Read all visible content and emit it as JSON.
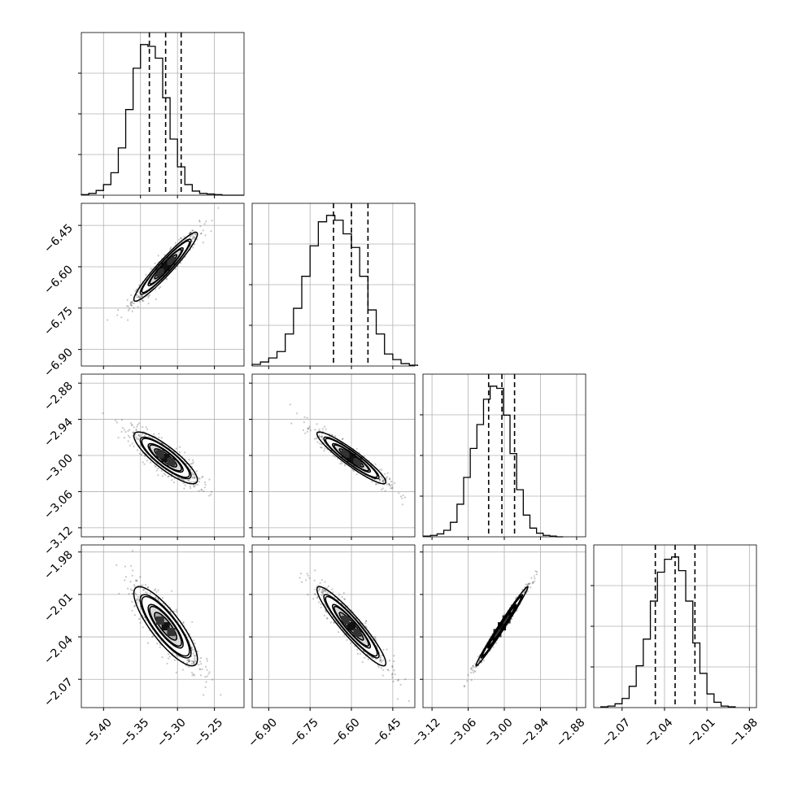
{
  "chart_data": {
    "type": "corner",
    "parameters": [
      {
        "range": [
          -5.43,
          -5.21
        ],
        "ticks": [
          -5.4,
          -5.35,
          -5.3,
          -5.25
        ],
        "tick_labels": [
          "−5.40",
          "−5.35",
          "−5.30",
          "−5.25"
        ],
        "quantiles": [
          -5.338,
          -5.316,
          -5.295
        ],
        "hist_bins": [
          -5.43,
          -5.42,
          -5.41,
          -5.4,
          -5.39,
          -5.38,
          -5.37,
          -5.36,
          -5.35,
          -5.34,
          -5.33,
          -5.32,
          -5.31,
          -5.3,
          -5.29,
          -5.28,
          -5.27,
          -5.26,
          -5.25,
          -5.24,
          -5.23,
          -5.22,
          -5.21
        ],
        "hist_counts": [
          1,
          3,
          8,
          18,
          38,
          80,
          145,
          215,
          255,
          252,
          232,
          165,
          95,
          48,
          18,
          7,
          3,
          2,
          1,
          0,
          0,
          0
        ]
      },
      {
        "range": [
          -6.96,
          -6.37
        ],
        "ticks": [
          -6.9,
          -6.75,
          -6.6,
          -6.45
        ],
        "tick_labels": [
          "−6.90",
          "−6.75",
          "−6.60",
          "−6.45"
        ],
        "quantiles": [
          -6.665,
          -6.6,
          -6.54
        ],
        "hist_bins": [
          -6.96,
          -6.93,
          -6.9,
          -6.87,
          -6.84,
          -6.81,
          -6.78,
          -6.75,
          -6.72,
          -6.69,
          -6.66,
          -6.63,
          -6.6,
          -6.57,
          -6.54,
          -6.51,
          -6.48,
          -6.45,
          -6.42,
          -6.39,
          -6.36
        ],
        "hist_counts": [
          2,
          5,
          10,
          18,
          40,
          72,
          112,
          150,
          180,
          188,
          182,
          165,
          148,
          112,
          70,
          40,
          15,
          8,
          3,
          1
        ]
      },
      {
        "range": [
          -3.135,
          -2.865
        ],
        "ticks": [
          -3.12,
          -3.06,
          -3.0,
          -2.94,
          -2.88
        ],
        "tick_labels": [
          "−3.12",
          "−3.06",
          "−3.00",
          "−2.94",
          "−2.88"
        ],
        "quantiles": [
          -3.026,
          -3.004,
          -2.983
        ],
        "hist_bins": [
          -3.1335,
          -3.1225,
          -3.1115,
          -3.1005,
          -3.0895,
          -3.0785,
          -3.0675,
          -3.0565,
          -3.0455,
          -3.0345,
          -3.0235,
          -3.0125,
          -3.0015,
          -2.9905,
          -2.9795,
          -2.9685,
          -2.9575,
          -2.9465,
          -2.9355,
          -2.9245,
          -2.9135,
          -2.9025
        ],
        "hist_counts": [
          1,
          2,
          4,
          9,
          20,
          45,
          82,
          122,
          155,
          190,
          208,
          205,
          168,
          115,
          65,
          30,
          12,
          5,
          2,
          1,
          0
        ]
      },
      {
        "range": [
          -2.09,
          -1.975
        ],
        "ticks": [
          -2.07,
          -2.04,
          -2.01,
          -1.98
        ],
        "tick_labels": [
          "−2.07",
          "−2.04",
          "−2.01",
          "−1.98"
        ],
        "quantiles": [
          -2.0465,
          -2.0325,
          -2.0185
        ],
        "hist_bins": [
          -2.085,
          -2.08,
          -2.075,
          -2.07,
          -2.065,
          -2.06,
          -2.055,
          -2.05,
          -2.045,
          -2.04,
          -2.035,
          -2.03,
          -2.025,
          -2.02,
          -2.015,
          -2.01,
          -2.005,
          -2.0,
          -1.995,
          -1.99
        ],
        "hist_counts": [
          1,
          2,
          5,
          12,
          28,
          55,
          90,
          140,
          178,
          195,
          198,
          180,
          140,
          85,
          45,
          18,
          7,
          2,
          1
        ]
      }
    ],
    "pairs": [
      {
        "row": 1,
        "col": 0,
        "slope": 2.3,
        "corr": 0.95
      },
      {
        "row": 2,
        "col": 0,
        "slope": -0.55,
        "corr": -0.85
      },
      {
        "row": 2,
        "col": 1,
        "slope": -0.3,
        "corr": -0.93
      },
      {
        "row": 3,
        "col": 0,
        "slope": -0.33,
        "corr": -0.83
      },
      {
        "row": 3,
        "col": 1,
        "slope": -0.18,
        "corr": -0.93
      },
      {
        "row": 3,
        "col": 2,
        "slope": 0.6,
        "corr": 0.99
      }
    ],
    "grid": true,
    "quantile_line_style": "dashed"
  }
}
